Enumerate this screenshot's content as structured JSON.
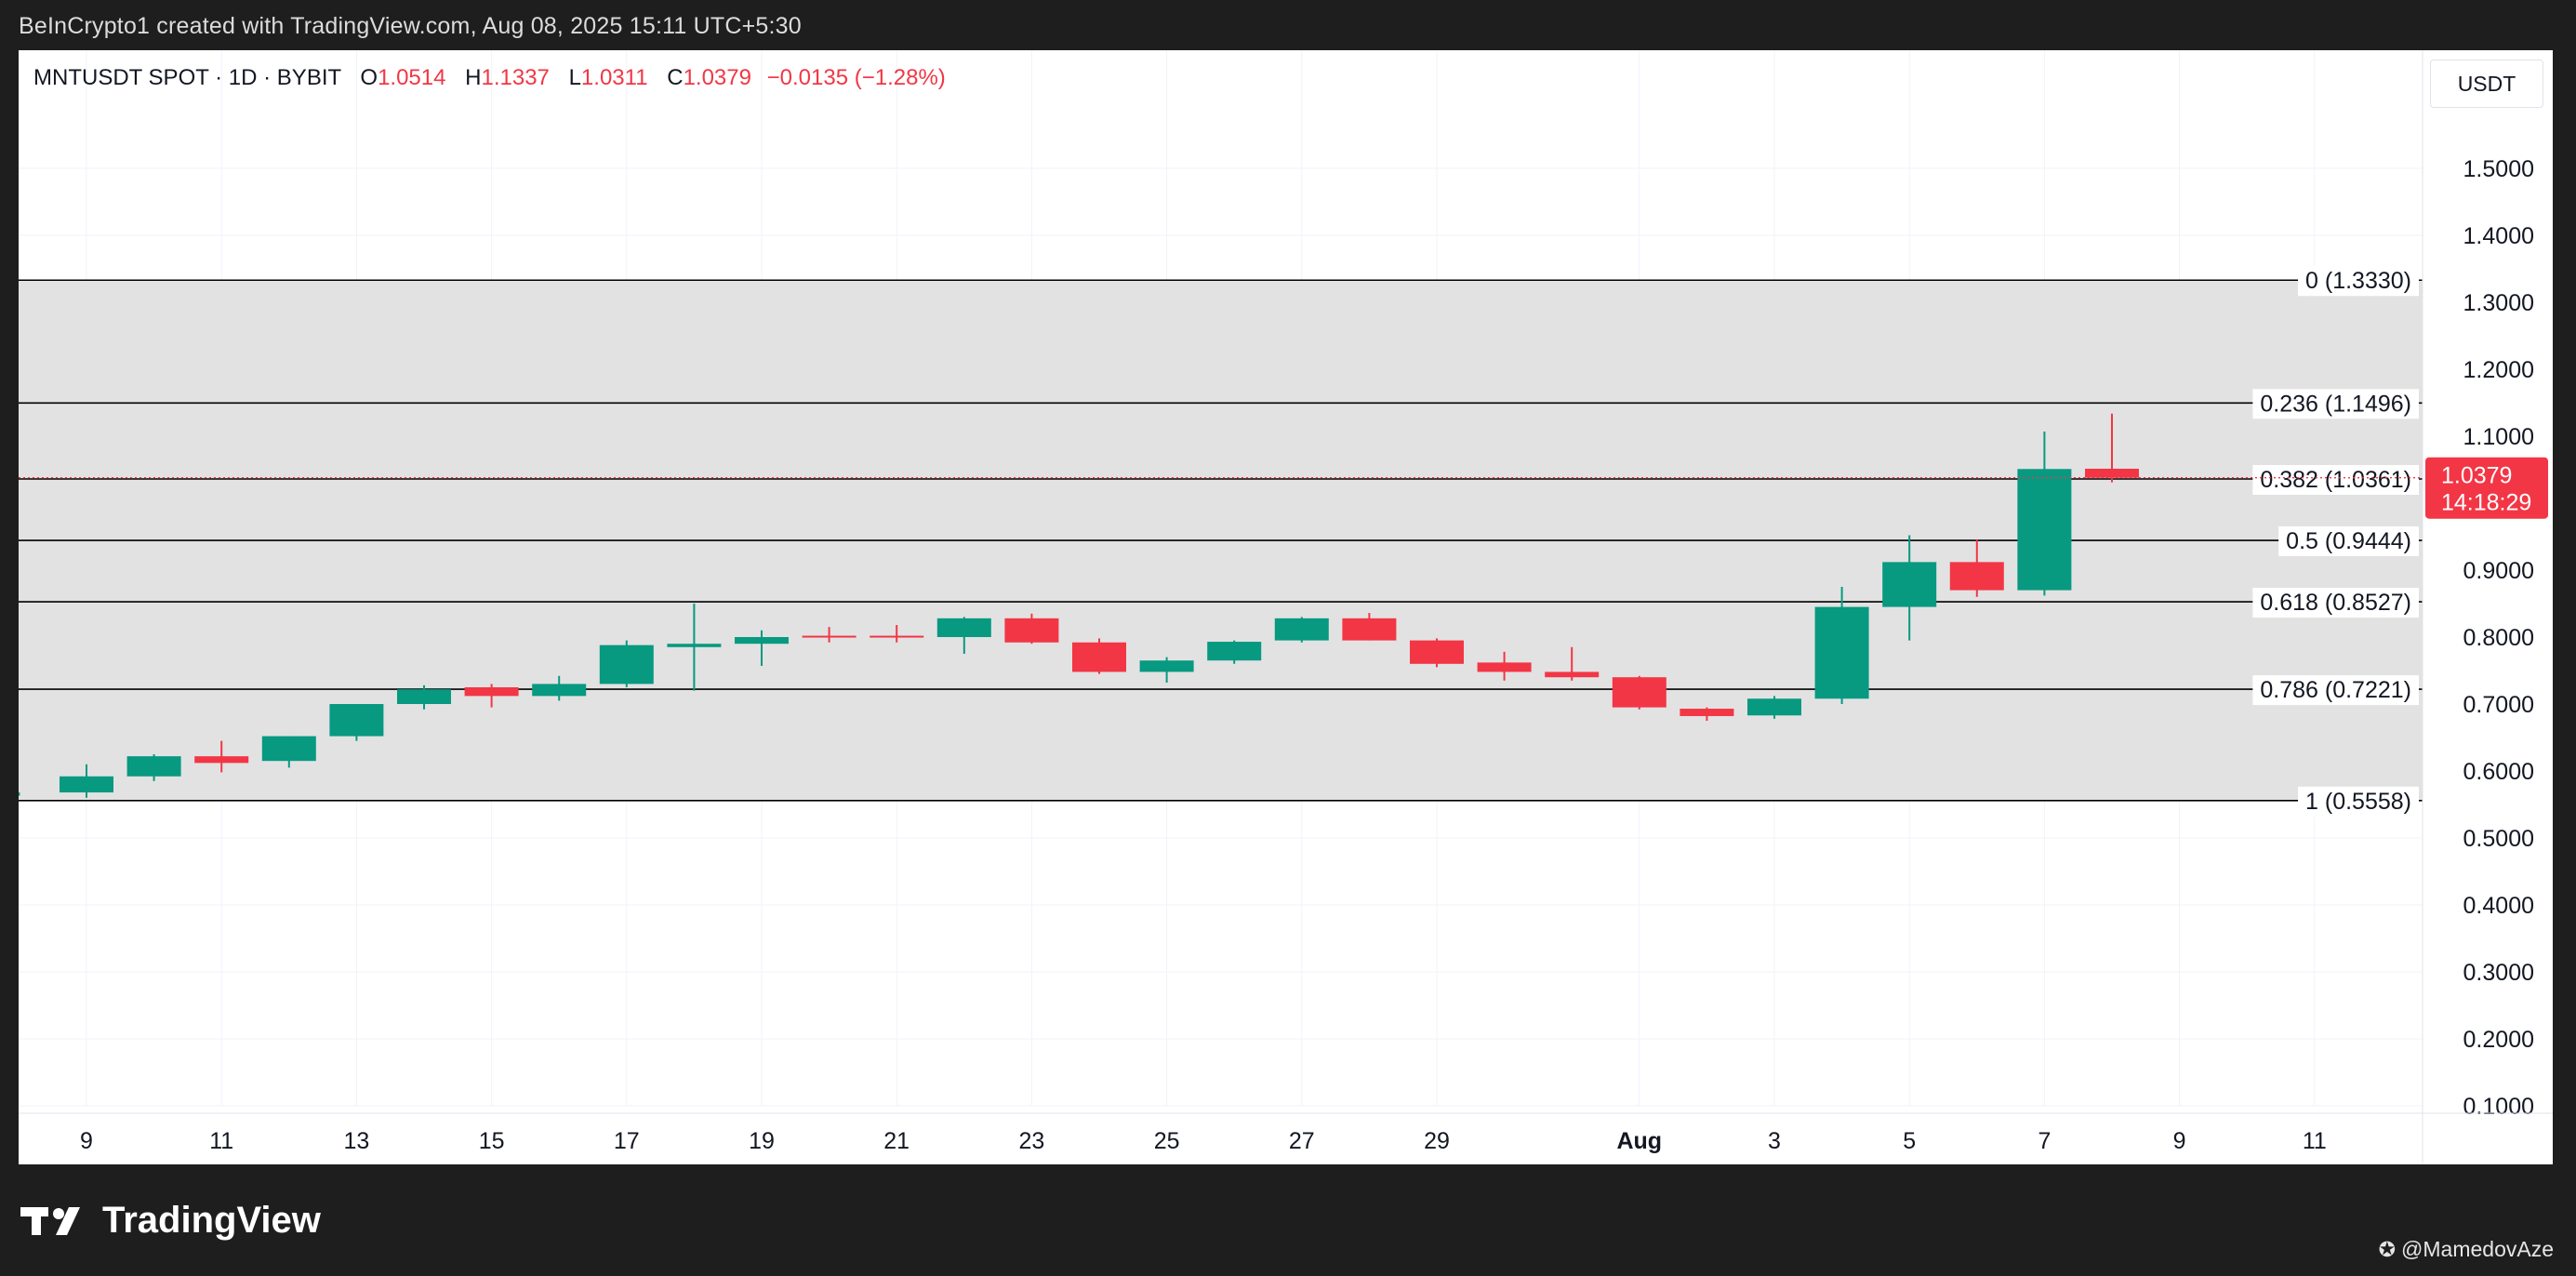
{
  "caption": "BeInCrypto1 created with TradingView.com, Aug 08, 2025 15:11 UTC+5:30",
  "legend": {
    "symbol": "MNTUSDT SPOT · 1D · BYBIT",
    "o_label": "O",
    "o_value": "1.0514",
    "h_label": "H",
    "h_value": "1.1337",
    "l_label": "L",
    "l_value": "1.0311",
    "c_label": "C",
    "c_value": "1.0379",
    "change": "−0.0135 (−1.28%)"
  },
  "currency": "USDT",
  "branding": "TradingView",
  "credit": "@MamedovAze",
  "colors": {
    "up": "#089981",
    "down": "#f23645",
    "zone": "#e0e0e0",
    "fib_line": "#000000",
    "grid": "#f0f3fa"
  },
  "chart_data": {
    "type": "candlestick",
    "y_axis": {
      "min": 0.05,
      "max": 1.6,
      "ticks": [
        "1.5000",
        "1.4000",
        "1.3000",
        "1.2000",
        "1.1000",
        "1.0000",
        "0.9000",
        "0.8000",
        "0.7000",
        "0.6000",
        "0.5000",
        "0.4000",
        "0.3000",
        "0.2000",
        "0.1000"
      ]
    },
    "x_axis": {
      "ticks": [
        {
          "label": "9",
          "day": 9
        },
        {
          "label": "11",
          "day": 11
        },
        {
          "label": "13",
          "day": 13
        },
        {
          "label": "15",
          "day": 15
        },
        {
          "label": "17",
          "day": 17
        },
        {
          "label": "19",
          "day": 19
        },
        {
          "label": "21",
          "day": 21
        },
        {
          "label": "23",
          "day": 23
        },
        {
          "label": "25",
          "day": 25
        },
        {
          "label": "27",
          "day": 27
        },
        {
          "label": "29",
          "day": 29
        },
        {
          "label": "Aug",
          "day": 32,
          "bold": true
        },
        {
          "label": "3",
          "day": 34
        },
        {
          "label": "5",
          "day": 36
        },
        {
          "label": "7",
          "day": 38
        },
        {
          "label": "9",
          "day": 40
        },
        {
          "label": "11",
          "day": 42
        }
      ]
    },
    "fib_levels": [
      {
        "ratio": "0",
        "price": 1.333,
        "label": "0 (1.3330)"
      },
      {
        "ratio": "0.236",
        "price": 1.1496,
        "label": "0.236 (1.1496)"
      },
      {
        "ratio": "0.382",
        "price": 1.0361,
        "label": "0.382 (1.0361)"
      },
      {
        "ratio": "0.5",
        "price": 0.9444,
        "label": "0.5 (0.9444)"
      },
      {
        "ratio": "0.618",
        "price": 0.8527,
        "label": "0.618 (0.8527)"
      },
      {
        "ratio": "0.786",
        "price": 0.7221,
        "label": "0.786 (0.7221)"
      },
      {
        "ratio": "1",
        "price": 0.5558,
        "label": "1 (0.5558)"
      }
    ],
    "last_price": {
      "value": 1.0379,
      "label": "1.0379",
      "countdown": "14:18:29"
    },
    "candles": [
      {
        "day": 8,
        "o": 0.565,
        "h": 0.568,
        "l": 0.563,
        "c": 0.566
      },
      {
        "day": 9,
        "o": 0.568,
        "h": 0.61,
        "l": 0.56,
        "c": 0.592
      },
      {
        "day": 10,
        "o": 0.592,
        "h": 0.625,
        "l": 0.585,
        "c": 0.622
      },
      {
        "day": 11,
        "o": 0.622,
        "h": 0.645,
        "l": 0.598,
        "c": 0.612
      },
      {
        "day": 12,
        "o": 0.615,
        "h": 0.652,
        "l": 0.605,
        "c": 0.652
      },
      {
        "day": 13,
        "o": 0.652,
        "h": 0.7,
        "l": 0.645,
        "c": 0.7
      },
      {
        "day": 14,
        "o": 0.7,
        "h": 0.728,
        "l": 0.692,
        "c": 0.722
      },
      {
        "day": 15,
        "o": 0.725,
        "h": 0.73,
        "l": 0.695,
        "c": 0.712
      },
      {
        "day": 16,
        "o": 0.712,
        "h": 0.742,
        "l": 0.705,
        "c": 0.73
      },
      {
        "day": 17,
        "o": 0.73,
        "h": 0.795,
        "l": 0.725,
        "c": 0.788
      },
      {
        "day": 18,
        "o": 0.785,
        "h": 0.85,
        "l": 0.72,
        "c": 0.79
      },
      {
        "day": 19,
        "o": 0.79,
        "h": 0.81,
        "l": 0.757,
        "c": 0.8
      },
      {
        "day": 20,
        "o": 0.802,
        "h": 0.815,
        "l": 0.792,
        "c": 0.8
      },
      {
        "day": 21,
        "o": 0.802,
        "h": 0.818,
        "l": 0.792,
        "c": 0.8
      },
      {
        "day": 22,
        "o": 0.8,
        "h": 0.83,
        "l": 0.775,
        "c": 0.828
      },
      {
        "day": 23,
        "o": 0.828,
        "h": 0.835,
        "l": 0.79,
        "c": 0.792
      },
      {
        "day": 24,
        "o": 0.792,
        "h": 0.798,
        "l": 0.745,
        "c": 0.748
      },
      {
        "day": 25,
        "o": 0.748,
        "h": 0.77,
        "l": 0.732,
        "c": 0.765
      },
      {
        "day": 26,
        "o": 0.765,
        "h": 0.795,
        "l": 0.76,
        "c": 0.793
      },
      {
        "day": 27,
        "o": 0.795,
        "h": 0.83,
        "l": 0.792,
        "c": 0.828
      },
      {
        "day": 28,
        "o": 0.828,
        "h": 0.836,
        "l": 0.795,
        "c": 0.795
      },
      {
        "day": 29,
        "o": 0.795,
        "h": 0.798,
        "l": 0.755,
        "c": 0.76
      },
      {
        "day": 30,
        "o": 0.762,
        "h": 0.778,
        "l": 0.735,
        "c": 0.748
      },
      {
        "day": 31,
        "o": 0.748,
        "h": 0.785,
        "l": 0.735,
        "c": 0.74
      },
      {
        "day": 32,
        "o": 0.74,
        "h": 0.742,
        "l": 0.692,
        "c": 0.695
      },
      {
        "day": 33,
        "o": 0.693,
        "h": 0.695,
        "l": 0.675,
        "c": 0.682
      },
      {
        "day": 34,
        "o": 0.683,
        "h": 0.712,
        "l": 0.678,
        "c": 0.708
      },
      {
        "day": 35,
        "o": 0.708,
        "h": 0.875,
        "l": 0.7,
        "c": 0.845
      },
      {
        "day": 36,
        "o": 0.845,
        "h": 0.952,
        "l": 0.795,
        "c": 0.912
      },
      {
        "day": 37,
        "o": 0.912,
        "h": 0.945,
        "l": 0.86,
        "c": 0.87
      },
      {
        "day": 38,
        "o": 0.87,
        "h": 1.107,
        "l": 0.862,
        "c": 1.051
      },
      {
        "day": 39,
        "o": 1.0514,
        "h": 1.1337,
        "l": 1.0311,
        "c": 1.0379
      }
    ]
  }
}
